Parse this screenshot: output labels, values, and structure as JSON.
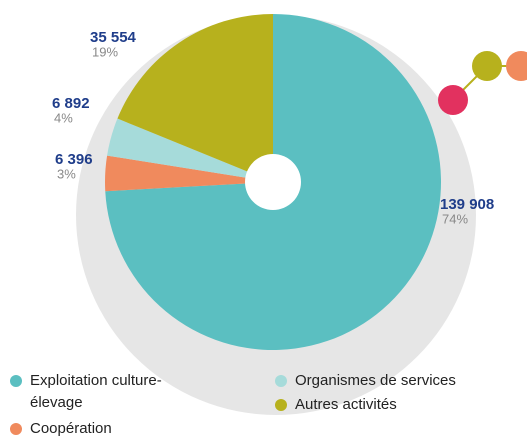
{
  "chart_data": {
    "type": "pie",
    "categories": [
      "Exploitation culture-élevage",
      "Coopération",
      "Organismes de services",
      "Autres activités"
    ],
    "values": [
      139908,
      6396,
      6892,
      35554
    ],
    "value_labels": [
      "139 908",
      "6 396",
      "6 892",
      "35 554"
    ],
    "percent_labels": [
      "74%",
      "3%",
      "4%",
      "19%"
    ],
    "colors": [
      "#5bbfc1",
      "#f08a5d",
      "#a6dbda",
      "#b7b11d"
    ]
  }
}
